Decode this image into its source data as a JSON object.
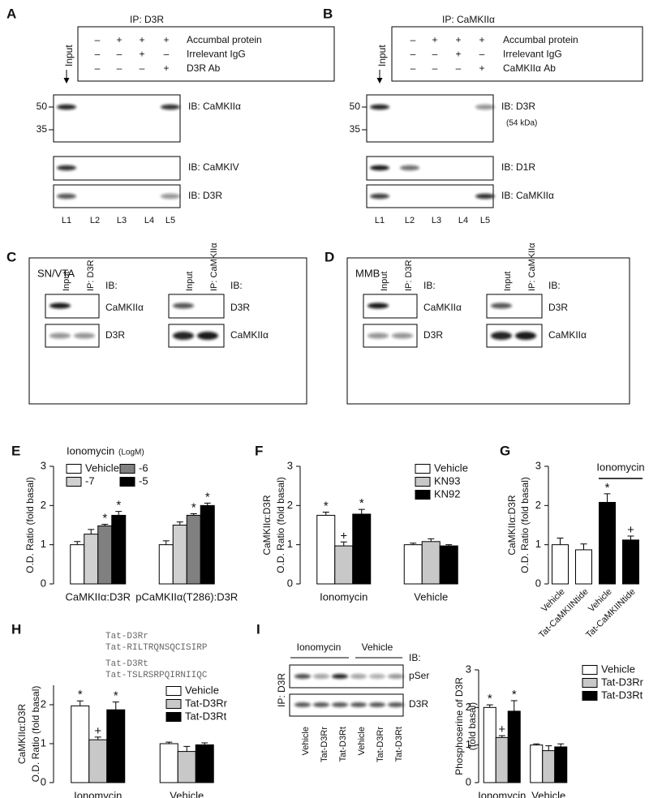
{
  "panels": {
    "A": {
      "letter": "A",
      "ip": "IP: D3R",
      "input": "Input",
      "rows": [
        {
          "label": "Accumbal protein",
          "signs": [
            "–",
            "+",
            "+",
            "+"
          ]
        },
        {
          "label": "Irrelevant IgG",
          "signs": [
            "–",
            "–",
            "+",
            "–"
          ]
        },
        {
          "label": "D3R Ab",
          "signs": [
            "–",
            "–",
            "–",
            "+"
          ]
        }
      ],
      "markers": [
        "50",
        "35"
      ],
      "blots": [
        {
          "label": "IB: CaMKIIα"
        },
        {
          "label": "IB: CaMKIV"
        },
        {
          "label": "IB: D3R"
        }
      ],
      "lanes": [
        "L1",
        "L2",
        "L3",
        "L4",
        "L5"
      ]
    },
    "B": {
      "letter": "B",
      "ip": "IP: CaMKIIα",
      "input": "Input",
      "rows": [
        {
          "label": "Accumbal protein",
          "signs": [
            "–",
            "+",
            "+",
            "+"
          ]
        },
        {
          "label": "Irrelevant IgG",
          "signs": [
            "–",
            "–",
            "+",
            "–"
          ]
        },
        {
          "label": "CaMKIIα Ab",
          "signs": [
            "–",
            "–",
            "–",
            "+"
          ]
        }
      ],
      "markers": [
        "50",
        "35"
      ],
      "blots": [
        {
          "label": "IB: D3R",
          "note": "(54 kDa)"
        },
        {
          "label": "IB: D1R"
        },
        {
          "label": "IB: CaMKIIα"
        }
      ],
      "lanes": [
        "L1",
        "L2",
        "L3",
        "L4",
        "L5"
      ]
    },
    "C": {
      "letter": "C",
      "region": "SN/VTA",
      "left": {
        "cols": [
          "Input",
          "IP: D3R"
        ],
        "ib": "IB:",
        "rows": [
          "CaMKIIα",
          "D3R"
        ]
      },
      "right": {
        "cols": [
          "Input",
          "IP: CaMKIIα"
        ],
        "ib": "IB:",
        "rows": [
          "D3R",
          "CaMKIIα"
        ]
      }
    },
    "D": {
      "letter": "D",
      "region": "MMB",
      "left": {
        "cols": [
          "Input",
          "IP: D3R"
        ],
        "ib": "IB:",
        "rows": [
          "CaMKIIα",
          "D3R"
        ]
      },
      "right": {
        "cols": [
          "Input",
          "IP: CaMKIIα"
        ],
        "ib": "IB:",
        "rows": [
          "D3R",
          "CaMKIIα"
        ]
      }
    },
    "H": {
      "peptides": [
        "Tat-D3Rr",
        "Tat-RILTRQNSQCISIRP",
        "Tat-D3Rt",
        "Tat-TSLRSRPQIRNIIQC"
      ]
    },
    "I": {
      "groups": [
        "Ionomycin",
        "Vehicle"
      ],
      "ib": "IB:",
      "rows": [
        "pSer",
        "D3R"
      ],
      "ip": "IP: D3R",
      "lanes": [
        "Vehicle",
        "Tat-D3Rr",
        "Tat-D3Rt",
        "Vehicle",
        "Tat-D3Rr",
        "Tat-D3Rt"
      ]
    }
  },
  "chart_data": [
    {
      "type": "bar",
      "letter": "E",
      "title": "Ionomycin",
      "title_note": "(LogM)",
      "ylabel": [
        "O.D. Ratio (fold basal)"
      ],
      "categories": [
        "CaMKIIα:D3R",
        "pCaMKIIα(T286):D3R"
      ],
      "ylim": [
        0,
        3
      ],
      "yticks": [
        0,
        1,
        2,
        3
      ],
      "series": [
        {
          "name": "Vehicle",
          "color": "#ffffff",
          "values": [
            1.0,
            1.0
          ],
          "errors": [
            0.08,
            0.1
          ]
        },
        {
          "name": "-7",
          "color": "#d0d0d0",
          "values": [
            1.27,
            1.5
          ],
          "errors": [
            0.12,
            0.08
          ]
        },
        {
          "name": "-6",
          "color": "#808080",
          "values": [
            1.48,
            1.75
          ],
          "errors": [
            0.04,
            0.04
          ],
          "sig": [
            "*",
            "*"
          ]
        },
        {
          "name": "-5",
          "color": "#000000",
          "values": [
            1.75,
            2.0
          ],
          "errors": [
            0.1,
            0.06
          ],
          "sig": [
            "*",
            "*"
          ]
        }
      ]
    },
    {
      "type": "bar",
      "letter": "F",
      "ylabel": [
        "CaMKIIα:D3R",
        "O.D. Ratio (fold basal)"
      ],
      "categories": [
        "Ionomycin",
        "Vehicle"
      ],
      "ylim": [
        0,
        3
      ],
      "yticks": [
        0,
        1,
        2,
        3
      ],
      "series": [
        {
          "name": "Vehicle",
          "color": "#ffffff",
          "values": [
            1.75,
            1.0
          ],
          "errors": [
            0.08,
            0.04
          ],
          "sig": [
            "*",
            null
          ]
        },
        {
          "name": "KN93",
          "color": "#c8c8c8",
          "values": [
            0.97,
            1.08
          ],
          "errors": [
            0.1,
            0.07
          ],
          "sig": [
            "+",
            null
          ]
        },
        {
          "name": "KN92",
          "color": "#000000",
          "values": [
            1.78,
            0.97
          ],
          "errors": [
            0.12,
            0.03
          ],
          "sig": [
            "*",
            null
          ]
        }
      ]
    },
    {
      "type": "bar",
      "letter": "G",
      "ylabel": [
        "CaMKIIα:D3R",
        "O.D. Ratio (fold basal)"
      ],
      "annotation": "Ionomycin",
      "categories": [
        "Vehicle",
        "Tat-CaMKIINtide",
        "Vehicle",
        "Tat-CaMKIINtide"
      ],
      "ylim": [
        0,
        3
      ],
      "yticks": [
        0,
        1,
        2,
        3
      ],
      "values": [
        1.0,
        0.87,
        2.08,
        1.12
      ],
      "errors": [
        0.17,
        0.15,
        0.22,
        0.1
      ],
      "colors": [
        "#ffffff",
        "#ffffff",
        "#000000",
        "#000000"
      ],
      "sig": [
        null,
        null,
        "*",
        "+"
      ]
    },
    {
      "type": "bar",
      "letter": "H",
      "ylabel": [
        "CaMKIIα:D3R",
        "O.D. Ratio (fold basal)"
      ],
      "categories": [
        "Ionomycin",
        "Vehicle"
      ],
      "ylim": [
        0,
        2.5
      ],
      "yticks": [
        0,
        1,
        2
      ],
      "series": [
        {
          "name": "Vehicle",
          "color": "#ffffff",
          "values": [
            1.97,
            1.0
          ],
          "errors": [
            0.13,
            0.04
          ],
          "sig": [
            "*",
            null
          ]
        },
        {
          "name": "Tat-D3Rr",
          "color": "#c8c8c8",
          "values": [
            1.1,
            0.8
          ],
          "errors": [
            0.07,
            0.13
          ],
          "sig": [
            "+",
            null
          ]
        },
        {
          "name": "Tat-D3Rt",
          "color": "#000000",
          "values": [
            1.87,
            0.97
          ],
          "errors": [
            0.2,
            0.05
          ],
          "sig": [
            "*",
            null
          ]
        }
      ]
    },
    {
      "type": "bar",
      "letter": "I",
      "ylabel": [
        "Phosphoserine of D3R",
        "(fold basal)"
      ],
      "categories": [
        "Ionomycin",
        "Vehicle"
      ],
      "ylim": [
        0,
        3
      ],
      "yticks": [
        0,
        1,
        2,
        3
      ],
      "series": [
        {
          "name": "Vehicle",
          "color": "#ffffff",
          "values": [
            2.0,
            1.0
          ],
          "errors": [
            0.07,
            0.03
          ],
          "sig": [
            "*",
            null
          ]
        },
        {
          "name": "Tat-D3Rr",
          "color": "#c8c8c8",
          "values": [
            1.2,
            0.85
          ],
          "errors": [
            0.05,
            0.13
          ],
          "sig": [
            "+",
            null
          ]
        },
        {
          "name": "Tat-D3Rt",
          "color": "#000000",
          "values": [
            1.9,
            0.95
          ],
          "errors": [
            0.28,
            0.08
          ],
          "sig": [
            "*",
            null
          ]
        }
      ]
    }
  ]
}
